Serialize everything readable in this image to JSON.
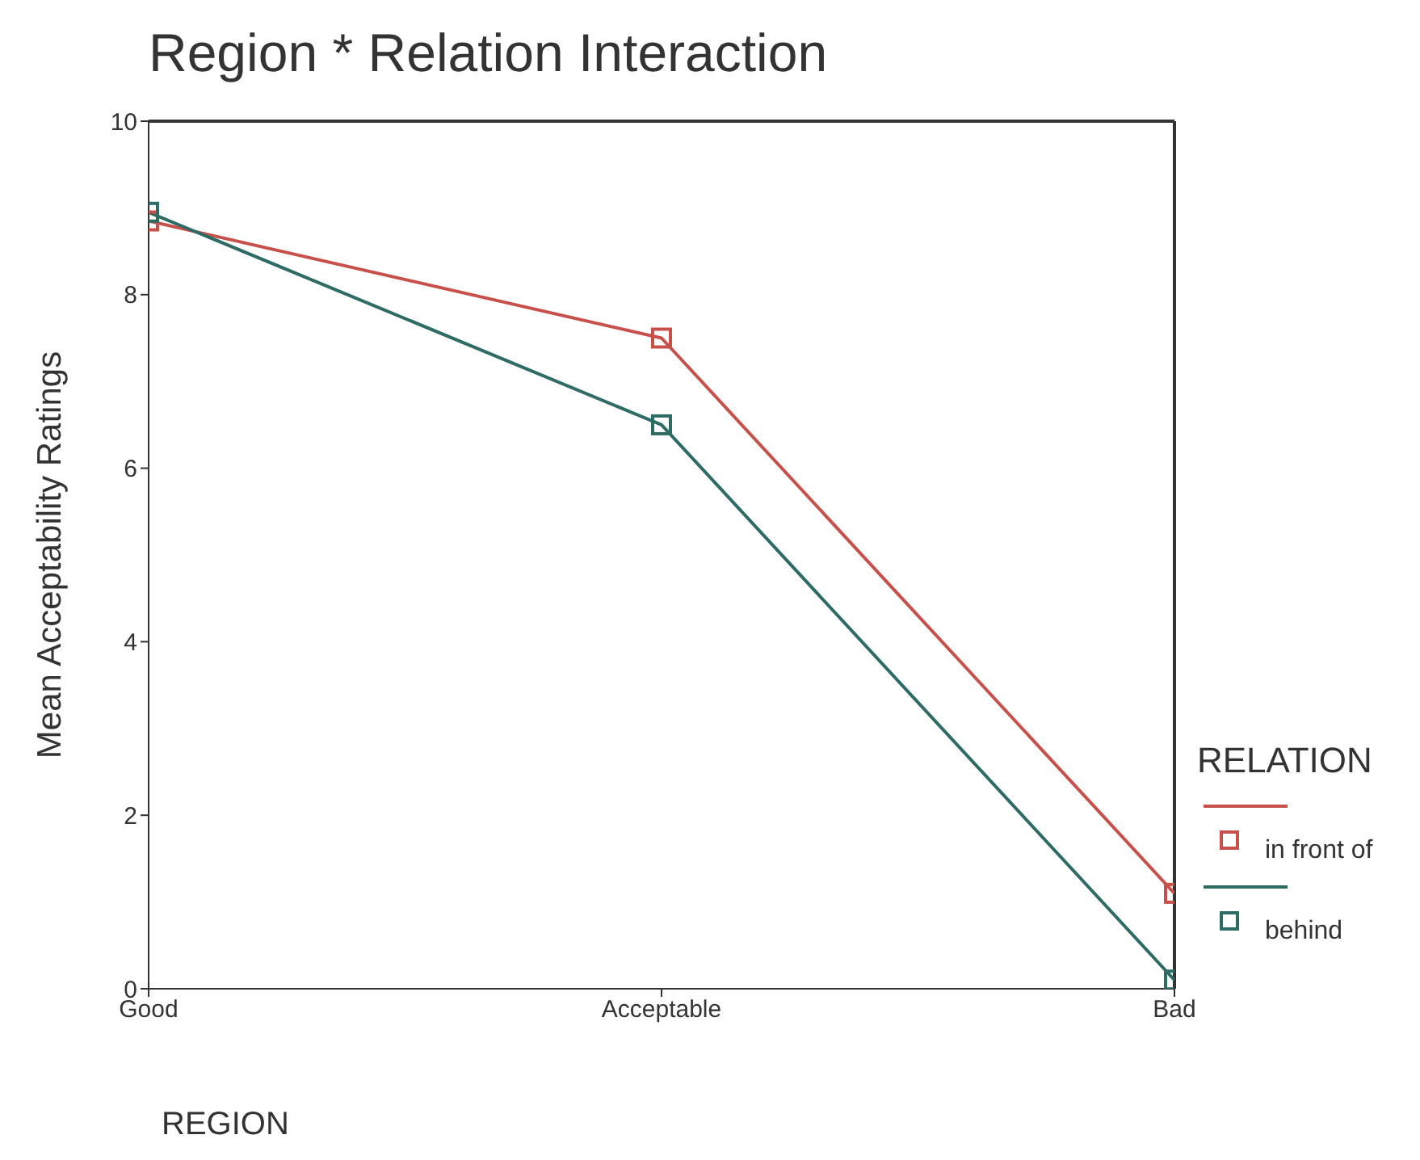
{
  "chart_data": {
    "type": "line",
    "title": "Region * Relation Interaction",
    "xlabel": "REGION",
    "ylabel": "Mean Acceptability Ratings",
    "legend_title": "RELATION",
    "categories": [
      "Good",
      "Acceptable",
      "Bad"
    ],
    "series": [
      {
        "name": "in front of",
        "color": "#c8504b",
        "values": [
          8.85,
          7.5,
          1.1
        ]
      },
      {
        "name": "behind",
        "color": "#2e6b65",
        "values": [
          8.95,
          6.5,
          0.1
        ]
      }
    ],
    "ylim": [
      0,
      10
    ],
    "yticks": [
      0,
      2,
      4,
      6,
      8,
      10
    ],
    "grid": false,
    "legend": "right",
    "marker": "square",
    "line_style": "solid"
  }
}
